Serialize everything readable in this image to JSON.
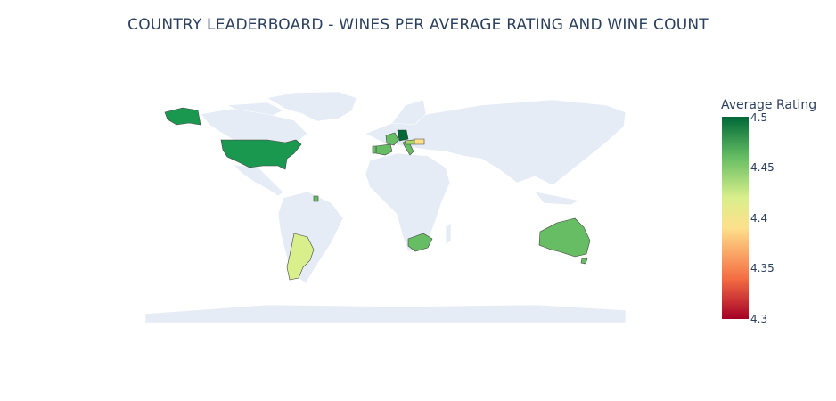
{
  "title": "COUNTRY LEADERBOARD - WINES PER AVERAGE RATING AND WINE COUNT",
  "colorbar": {
    "title": "Average Rating",
    "min": 4.3,
    "max": 4.5,
    "ticks": [
      "4.5",
      "4.45",
      "4.4",
      "4.35",
      "4.3"
    ],
    "scale": "RdYlGn",
    "colors": [
      "#a50026",
      "#f46d43",
      "#fee08b",
      "#d9ef8b",
      "#66bd63",
      "#006837"
    ]
  },
  "land_color": "#e5ecf6",
  "chart_data": {
    "type": "choropleth",
    "metric": "Average Rating",
    "countries": [
      {
        "name": "United States",
        "value": 4.48
      },
      {
        "name": "Argentina",
        "value": 4.42
      },
      {
        "name": "Australia",
        "value": 4.46
      },
      {
        "name": "South Africa",
        "value": 4.46
      },
      {
        "name": "Spain",
        "value": 4.45
      },
      {
        "name": "France",
        "value": 4.45
      },
      {
        "name": "Italy",
        "value": 4.46
      },
      {
        "name": "Germany",
        "value": 4.5
      },
      {
        "name": "Austria",
        "value": 4.41
      },
      {
        "name": "Hungary",
        "value": 4.4
      },
      {
        "name": "Portugal",
        "value": 4.45
      },
      {
        "name": "Suriname",
        "value": 4.45
      }
    ]
  }
}
